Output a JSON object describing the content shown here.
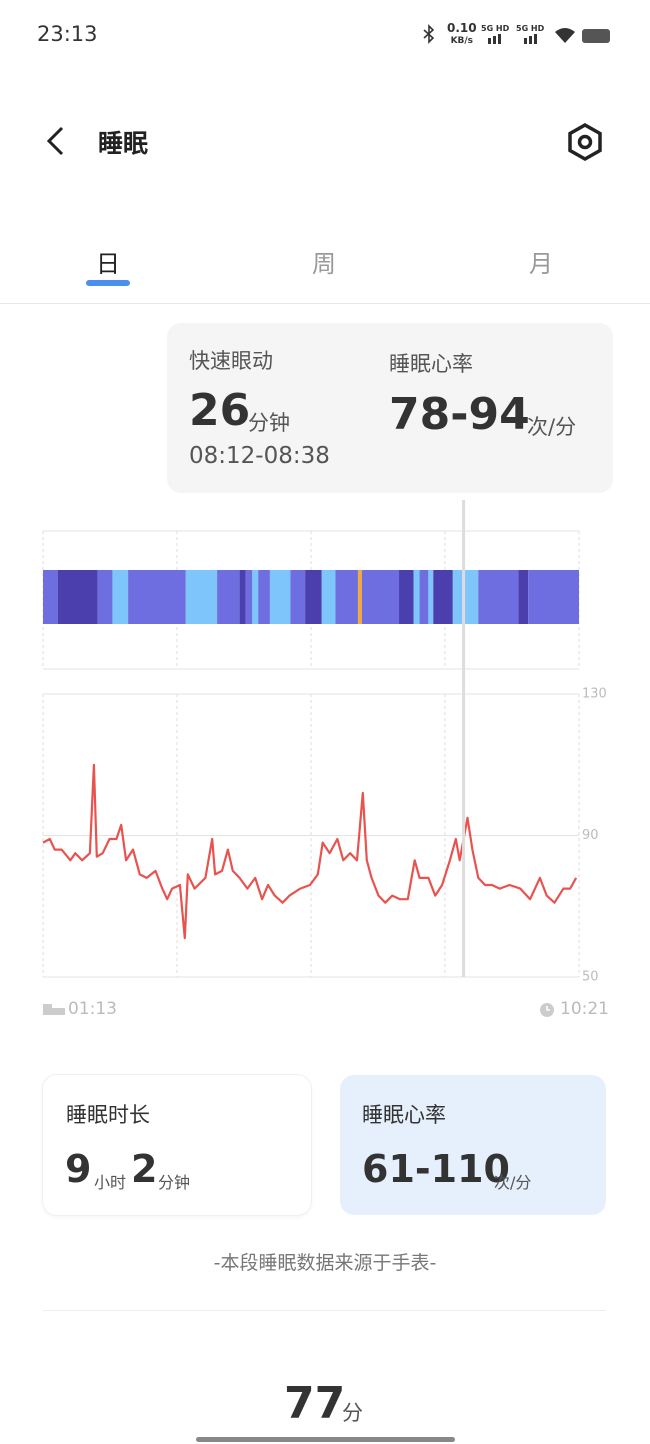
{
  "status_bar": {
    "time": "23:13",
    "net_speed": "0.10",
    "net_unit": "KB/s",
    "sim1": "5G HD",
    "sim2": "5G HD"
  },
  "header": {
    "title": "睡眠"
  },
  "tabs": [
    "日",
    "周",
    "月"
  ],
  "tooltip": {
    "stage_label": "快速眼动",
    "duration": 26,
    "duration_unit": "分钟",
    "time_range": "08:12-08:38",
    "hr_label": "睡眠心率",
    "hr_range": "78-94",
    "hr_unit": "次/分"
  },
  "stage_chart": {
    "xlim": [
      0,
      548
    ],
    "cursor": 430,
    "segments": [
      {
        "start": 0,
        "end": 15,
        "color": "#6e6ee0"
      },
      {
        "start": 15,
        "end": 56,
        "color": "#4b3fae"
      },
      {
        "start": 56,
        "end": 71,
        "color": "#6e6ee0"
      },
      {
        "start": 71,
        "end": 87,
        "color": "#7ec5fb"
      },
      {
        "start": 87,
        "end": 146,
        "color": "#6e6ee0"
      },
      {
        "start": 146,
        "end": 178,
        "color": "#7ec5fb"
      },
      {
        "start": 178,
        "end": 201,
        "color": "#6e6ee0"
      },
      {
        "start": 201,
        "end": 207,
        "color": "#4b3fae"
      },
      {
        "start": 207,
        "end": 214,
        "color": "#6e6ee0"
      },
      {
        "start": 214,
        "end": 220,
        "color": "#7ec5fb"
      },
      {
        "start": 220,
        "end": 232,
        "color": "#6e6ee0"
      },
      {
        "start": 232,
        "end": 253,
        "color": "#7ec5fb"
      },
      {
        "start": 253,
        "end": 268,
        "color": "#6e6ee0"
      },
      {
        "start": 268,
        "end": 285,
        "color": "#4b3fae"
      },
      {
        "start": 285,
        "end": 299,
        "color": "#7ec5fb"
      },
      {
        "start": 299,
        "end": 322,
        "color": "#6e6ee0"
      },
      {
        "start": 322,
        "end": 326,
        "color": "#f5a93a"
      },
      {
        "start": 326,
        "end": 364,
        "color": "#6e6ee0"
      },
      {
        "start": 364,
        "end": 379,
        "color": "#4b3fae"
      },
      {
        "start": 379,
        "end": 385,
        "color": "#7ec5fb"
      },
      {
        "start": 385,
        "end": 394,
        "color": "#6e6ee0"
      },
      {
        "start": 394,
        "end": 399,
        "color": "#7ec5fb"
      },
      {
        "start": 399,
        "end": 419,
        "color": "#4b3fae"
      },
      {
        "start": 419,
        "end": 445,
        "color": "#7ec5fb"
      },
      {
        "start": 445,
        "end": 486,
        "color": "#6e6ee0"
      },
      {
        "start": 486,
        "end": 496,
        "color": "#4b3fae"
      },
      {
        "start": 496,
        "end": 548,
        "color": "#6e6ee0"
      }
    ]
  },
  "hr_chart": {
    "type": "line",
    "color": "#e8534f",
    "xlim": [
      0,
      548
    ],
    "ylim": [
      50,
      130
    ],
    "yticks": [
      50,
      90,
      130
    ],
    "start_label": "01:13",
    "end_label": "10:21",
    "x": [
      0,
      7,
      12,
      19,
      28,
      33,
      40,
      48,
      52,
      55,
      61,
      68,
      75,
      80,
      85,
      92,
      99,
      106,
      115,
      122,
      127,
      132,
      140,
      145,
      148,
      155,
      166,
      173,
      176,
      183,
      189,
      194,
      201,
      209,
      217,
      224,
      230,
      237,
      245,
      252,
      263,
      273,
      281,
      286,
      293,
      301,
      307,
      314,
      321,
      327,
      331,
      336,
      343,
      350,
      357,
      365,
      373,
      380,
      385,
      394,
      401,
      408,
      416,
      422,
      426,
      434,
      439,
      445,
      452,
      459,
      467,
      477,
      488,
      498,
      508,
      515,
      523,
      532,
      539,
      545
    ],
    "values": [
      88,
      89,
      86,
      86,
      83,
      85,
      83,
      85,
      110,
      84,
      85,
      89,
      89,
      93,
      83,
      86,
      79,
      78,
      80,
      75,
      72,
      75,
      76,
      61,
      79,
      75,
      78,
      89,
      79,
      80,
      86,
      80,
      78,
      75,
      78,
      72,
      76,
      73,
      71,
      73,
      75,
      76,
      79,
      88,
      85,
      89,
      83,
      85,
      83,
      102,
      83,
      78,
      73,
      71,
      73,
      72,
      72,
      83,
      78,
      78,
      73,
      76,
      83,
      89,
      83,
      95,
      86,
      78,
      76,
      76,
      75,
      76,
      75,
      72,
      78,
      73,
      71,
      75,
      75,
      78
    ]
  },
  "cards": [
    {
      "label": "睡眠时长",
      "hours": 9,
      "hour_unit": "小时",
      "minutes": 2,
      "minute_unit": "分钟"
    },
    {
      "label": "睡眠心率",
      "range": "61-110",
      "unit": "次/分"
    }
  ],
  "source_note": "-本段睡眠数据来源于手表-",
  "score": {
    "value": 77,
    "unit": "分"
  }
}
